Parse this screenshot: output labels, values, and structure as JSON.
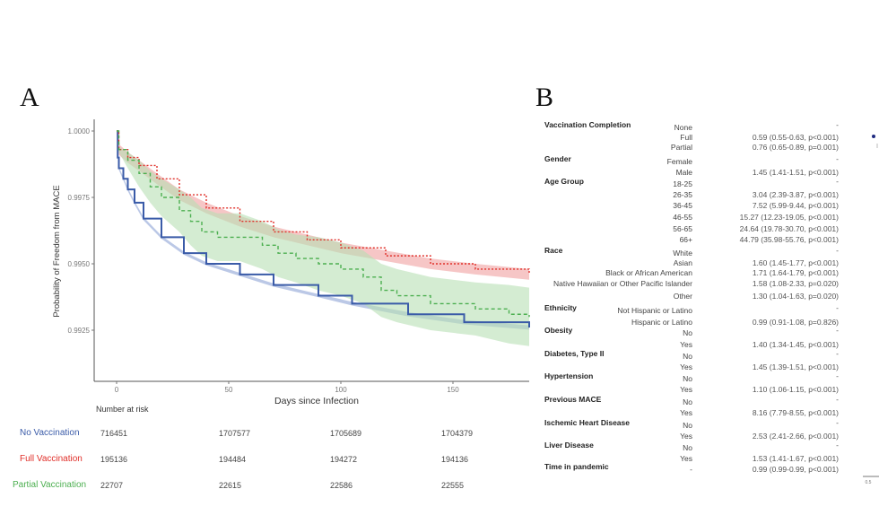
{
  "panels": {
    "a_label": "A",
    "b_label": "B"
  },
  "chart_data": [
    {
      "type": "line",
      "title": "",
      "xlabel": "Days since Infection",
      "ylabel": "Probability of Freedom from MACE",
      "xlim": [
        -5,
        184
      ],
      "ylim": [
        0.99056,
        1.00045
      ],
      "xticks": [
        0,
        50,
        100,
        150
      ],
      "yticks": [
        "1.0000",
        "0.9975",
        "0.9950",
        "0.9925"
      ],
      "grid": false,
      "colors": {
        "No Vaccination": "#3a5ba8",
        "Full Vaccination": "#e0302a",
        "Partial Vaccination": "#4caf50"
      },
      "series": [
        {
          "name": "No Vaccination",
          "style": "solid",
          "color": "#3a5ba8",
          "band": "#8ea3d6",
          "points": [
            [
              0,
              1,
              1,
              1
            ],
            [
              0.5,
              0.999,
              0.99994,
              0.99906
            ],
            [
              1,
              0.9986,
              0.99854,
              0.99866
            ],
            [
              3,
              0.9982,
              0.99814,
              0.99826
            ],
            [
              5,
              0.9978,
              0.99774,
              0.99786
            ],
            [
              8,
              0.9973,
              0.99724,
              0.99736
            ],
            [
              12,
              0.9967,
              0.99664,
              0.99676
            ],
            [
              20,
              0.996,
              0.99594,
              0.99606
            ],
            [
              30,
              0.9954,
              0.99534,
              0.99546
            ],
            [
              40,
              0.995,
              0.99494,
              0.99506
            ],
            [
              55,
              0.9946,
              0.99454,
              0.99466
            ],
            [
              70,
              0.9942,
              0.99414,
              0.99426
            ],
            [
              90,
              0.9938,
              0.99374,
              0.99386
            ],
            [
              105,
              0.9935,
              0.99343,
              0.99357
            ],
            [
              130,
              0.9931,
              0.99302,
              0.99318
            ],
            [
              155,
              0.9928,
              0.99272,
              0.99288
            ],
            [
              184,
              0.9926,
              0.99252,
              0.99268
            ]
          ]
        },
        {
          "name": "Full Vaccination",
          "style": "dotted",
          "color": "#e0302a",
          "band": "#f0a0a0",
          "points": [
            [
              0,
              1,
              1,
              1
            ],
            [
              1,
              0.9993,
              0.9991,
              0.9995
            ],
            [
              5,
              0.999,
              0.9988,
              0.9992
            ],
            [
              10,
              0.9987,
              0.9985,
              0.9989
            ],
            [
              18,
              0.9982,
              0.998,
              0.9984
            ],
            [
              28,
              0.9976,
              0.9974,
              0.9978
            ],
            [
              40,
              0.9971,
              0.9969,
              0.9973
            ],
            [
              55,
              0.9966,
              0.9964,
              0.9968
            ],
            [
              70,
              0.9962,
              0.996,
              0.9964
            ],
            [
              85,
              0.9959,
              0.9957,
              0.9961
            ],
            [
              100,
              0.9956,
              0.9954,
              0.9958
            ],
            [
              120,
              0.9953,
              0.9951,
              0.9955
            ],
            [
              140,
              0.995,
              0.9948,
              0.9952
            ],
            [
              160,
              0.9948,
              0.9946,
              0.995
            ],
            [
              184,
              0.9946,
              0.9944,
              0.9948
            ]
          ]
        },
        {
          "name": "Partial Vaccination",
          "style": "dashed",
          "color": "#4caf50",
          "band": "#b8e0b4",
          "points": [
            [
              0,
              1,
              1,
              1
            ],
            [
              1,
              0.9993,
              0.9992,
              0.9994
            ],
            [
              5,
              0.9989,
              0.9986,
              0.9992
            ],
            [
              10,
              0.9984,
              0.9979,
              0.9989
            ],
            [
              15,
              0.9979,
              0.9973,
              0.9985
            ],
            [
              20,
              0.9975,
              0.9968,
              0.9982
            ],
            [
              28,
              0.997,
              0.9962,
              0.9978
            ],
            [
              33,
              0.9966,
              0.9957,
              0.9975
            ],
            [
              38,
              0.9962,
              0.9953,
              0.9971
            ],
            [
              45,
              0.996,
              0.9951,
              0.9969
            ],
            [
              55,
              0.996,
              0.9951,
              0.9969
            ],
            [
              65,
              0.9957,
              0.9948,
              0.9966
            ],
            [
              72,
              0.9954,
              0.9945,
              0.9963
            ],
            [
              80,
              0.9952,
              0.9943,
              0.9961
            ],
            [
              90,
              0.995,
              0.994,
              0.996
            ],
            [
              100,
              0.9948,
              0.9938,
              0.9958
            ],
            [
              110,
              0.9945,
              0.9935,
              0.9955
            ],
            [
              118,
              0.994,
              0.993,
              0.995
            ],
            [
              125,
              0.9938,
              0.9928,
              0.9948
            ],
            [
              140,
              0.9935,
              0.9925,
              0.9945
            ],
            [
              160,
              0.9933,
              0.9923,
              0.9943
            ],
            [
              175,
              0.9931,
              0.992,
              0.9942
            ],
            [
              184,
              0.993,
              0.9919,
              0.9941
            ]
          ]
        }
      ],
      "risk_table": {
        "title": "Number at risk",
        "rows": [
          {
            "label": "No Vaccination",
            "color": "#3a5ba8",
            "values": [
              "716451",
              "1707577",
              "1705689",
              "1704379"
            ]
          },
          {
            "label": "Full Vaccination",
            "color": "#e0302a",
            "values": [
              "195136",
              "194484",
              "194272",
              "194136"
            ]
          },
          {
            "label": "Partial Vaccination",
            "color": "#4caf50",
            "values": [
              "22707",
              "22615",
              "22586",
              "22555"
            ]
          }
        ]
      }
    },
    {
      "type": "table",
      "rows": [
        {
          "category": "Vaccination Completion",
          "level": "None",
          "value": "-"
        },
        {
          "category": "",
          "level": "Full",
          "value": "0.59 (0.55-0.63, p<0.001)"
        },
        {
          "category": "",
          "level": "Partial",
          "value": "0.76 (0.65-0.89, p=0.001)"
        },
        {
          "category": "Gender",
          "level": "Female",
          "value": "-"
        },
        {
          "category": "",
          "level": "Male",
          "value": "1.45 (1.41-1.51, p<0.001)"
        },
        {
          "category": "Age Group",
          "level": "18-25",
          "value": "-"
        },
        {
          "category": "",
          "level": "26-35",
          "value": "3.04 (2.39-3.87, p<0.001)"
        },
        {
          "category": "",
          "level": "36-45",
          "value": "7.52 (5.99-9.44, p<0.001)"
        },
        {
          "category": "",
          "level": "46-55",
          "value": "15.27 (12.23-19.05, p<0.001)"
        },
        {
          "category": "",
          "level": "56-65",
          "value": "24.64 (19.78-30.70, p<0.001)"
        },
        {
          "category": "",
          "level": "66+",
          "value": "44.79 (35.98-55.76, p<0.001)"
        },
        {
          "category": "Race",
          "level": "White",
          "value": "-"
        },
        {
          "category": "",
          "level": "Asian",
          "value": "1.60 (1.45-1.77, p<0.001)"
        },
        {
          "category": "",
          "level": "Black or African American",
          "value": "1.71 (1.64-1.79, p<0.001)"
        },
        {
          "category": "",
          "level": "Native Hawaiian or Other Pacific Islander",
          "value": "1.58 (1.08-2.33, p=0.020)"
        },
        {
          "category": "",
          "level": "Other",
          "value": "1.30 (1.04-1.63, p=0.020)"
        },
        {
          "category": "Ethnicity",
          "level": "Not Hispanic or Latino",
          "value": "-"
        },
        {
          "category": "",
          "level": "Hispanic or Latino",
          "value": "0.99 (0.91-1.08, p=0.826)"
        },
        {
          "category": "Obesity",
          "level": "No",
          "value": "-"
        },
        {
          "category": "",
          "level": "Yes",
          "value": "1.40 (1.34-1.45, p<0.001)"
        },
        {
          "category": "Diabetes, Type II",
          "level": "No",
          "value": "-"
        },
        {
          "category": "",
          "level": "Yes",
          "value": "1.45 (1.39-1.51, p<0.001)"
        },
        {
          "category": "Hypertension",
          "level": "No",
          "value": "-"
        },
        {
          "category": "",
          "level": "Yes",
          "value": "1.10 (1.06-1.15, p<0.001)"
        },
        {
          "category": "Previous MACE",
          "level": "No",
          "value": "-"
        },
        {
          "category": "",
          "level": "Yes",
          "value": "8.16 (7.79-8.55, p<0.001)"
        },
        {
          "category": "Ischemic Heart Disease",
          "level": "No",
          "value": "-"
        },
        {
          "category": "",
          "level": "Yes",
          "value": "2.53 (2.41-2.66, p<0.001)"
        },
        {
          "category": "Liver Disease",
          "level": "No",
          "value": "-"
        },
        {
          "category": "",
          "level": "Yes",
          "value": "1.53 (1.41-1.67, p<0.001)"
        },
        {
          "category": "Time in pandemic",
          "level": "-",
          "value": "0.99 (0.99-0.99, p<0.001)"
        }
      ],
      "forest_axis_tick": "0.5",
      "forest_point_color": "#1f2a80"
    }
  ]
}
